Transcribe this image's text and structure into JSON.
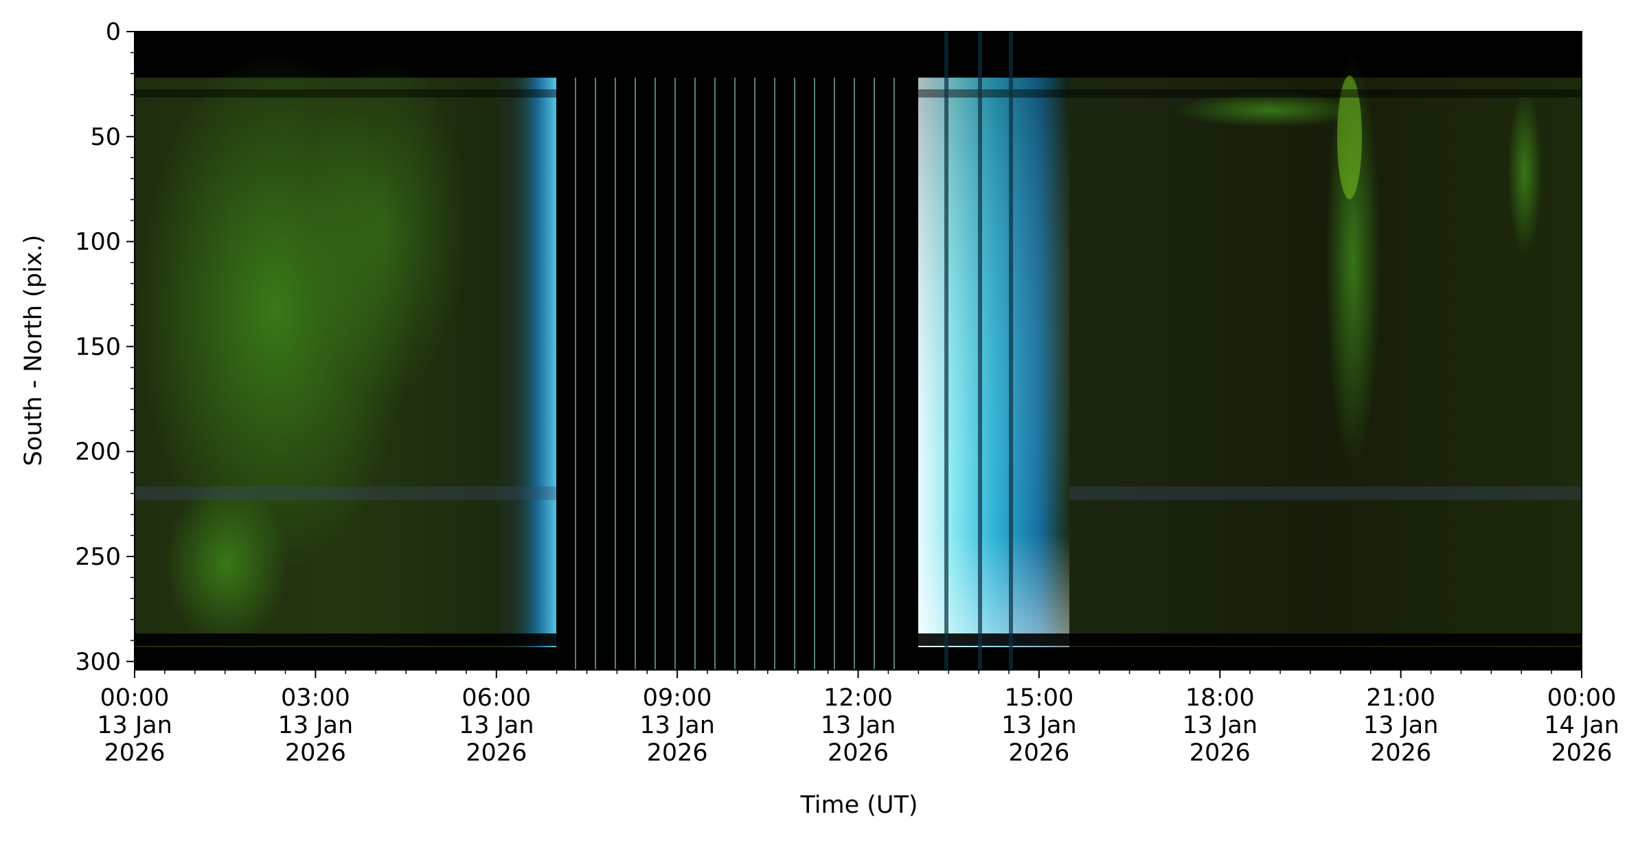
{
  "chart_data": {
    "type": "image",
    "xlabel": "Time (UT)",
    "ylabel": "South - North (pix.)",
    "xlim": [
      "2026-01-13T00:00",
      "2026-01-14T00:00"
    ],
    "xticks": [
      {
        "value": "2026-01-13T00:00",
        "label": "00:00\n13 Jan\n2026"
      },
      {
        "value": "2026-01-13T03:00",
        "label": "03:00\n13 Jan\n2026"
      },
      {
        "value": "2026-01-13T06:00",
        "label": "06:00\n13 Jan\n2026"
      },
      {
        "value": "2026-01-13T09:00",
        "label": "09:00\n13 Jan\n2026"
      },
      {
        "value": "2026-01-13T12:00",
        "label": "12:00\n13 Jan\n2026"
      },
      {
        "value": "2026-01-13T15:00",
        "label": "15:00\n13 Jan\n2026"
      },
      {
        "value": "2026-01-13T18:00",
        "label": "18:00\n13 Jan\n2026"
      },
      {
        "value": "2026-01-13T21:00",
        "label": "21:00\n13 Jan\n2026"
      },
      {
        "value": "2026-01-14T00:00",
        "label": "00:00\n14 Jan\n2026"
      }
    ],
    "ylim": [
      0,
      304
    ],
    "yticks": [
      0,
      50,
      100,
      150,
      200,
      250,
      300
    ],
    "y_inverted": true
  }
}
